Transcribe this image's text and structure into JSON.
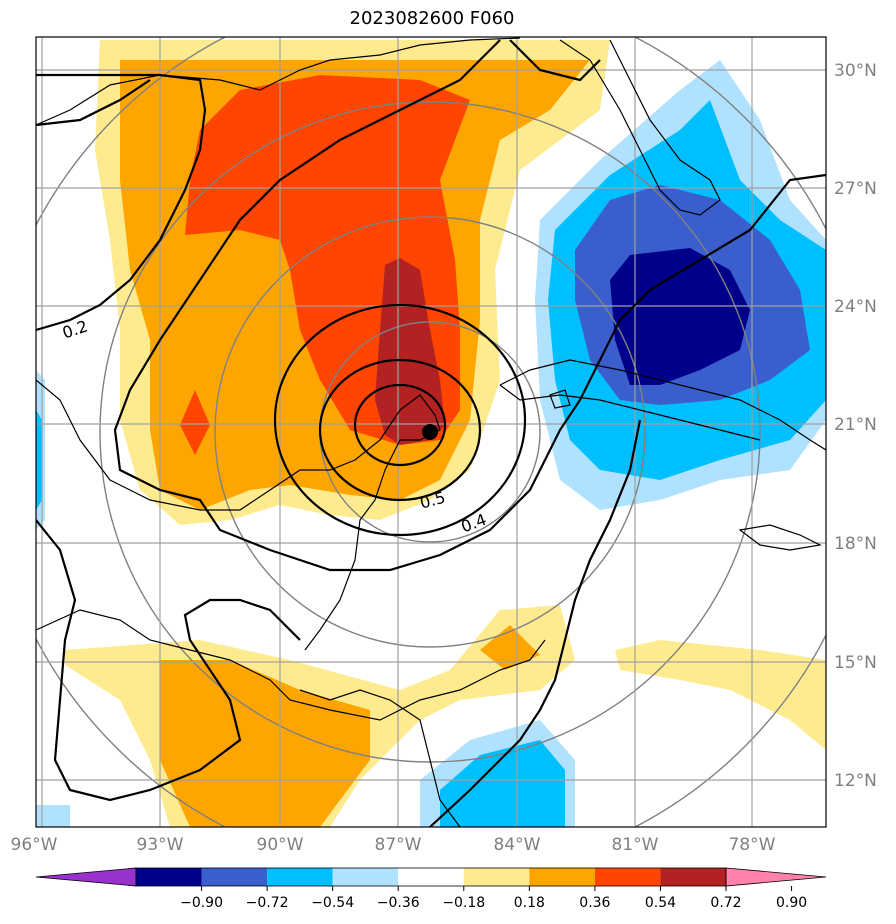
{
  "title": "2023082600 F060",
  "map": {
    "lon_labels": [
      "96°W",
      "93°W",
      "90°W",
      "87°W",
      "84°W",
      "81°W",
      "78°W"
    ],
    "lat_labels": [
      "30°N",
      "27°N",
      "24°N",
      "21°N",
      "18°N",
      "15°N",
      "12°N"
    ],
    "contour_labels": [
      "0.2",
      "0.5",
      "0.4"
    ],
    "storm_center": "hurricane-position"
  },
  "colorbar": {
    "ticks": [
      "−0.90",
      "−0.72",
      "−0.54",
      "−0.36",
      "−0.18",
      "0.18",
      "0.36",
      "0.54",
      "0.72",
      "0.90"
    ],
    "colors": [
      "#9932cc",
      "#00008b",
      "#3a5fcd",
      "#00bfff",
      "#b0e2ff",
      "#ffffff",
      "#ffeb8f",
      "#ffa500",
      "#ff4500",
      "#b22222",
      "#ff82ab"
    ]
  }
}
